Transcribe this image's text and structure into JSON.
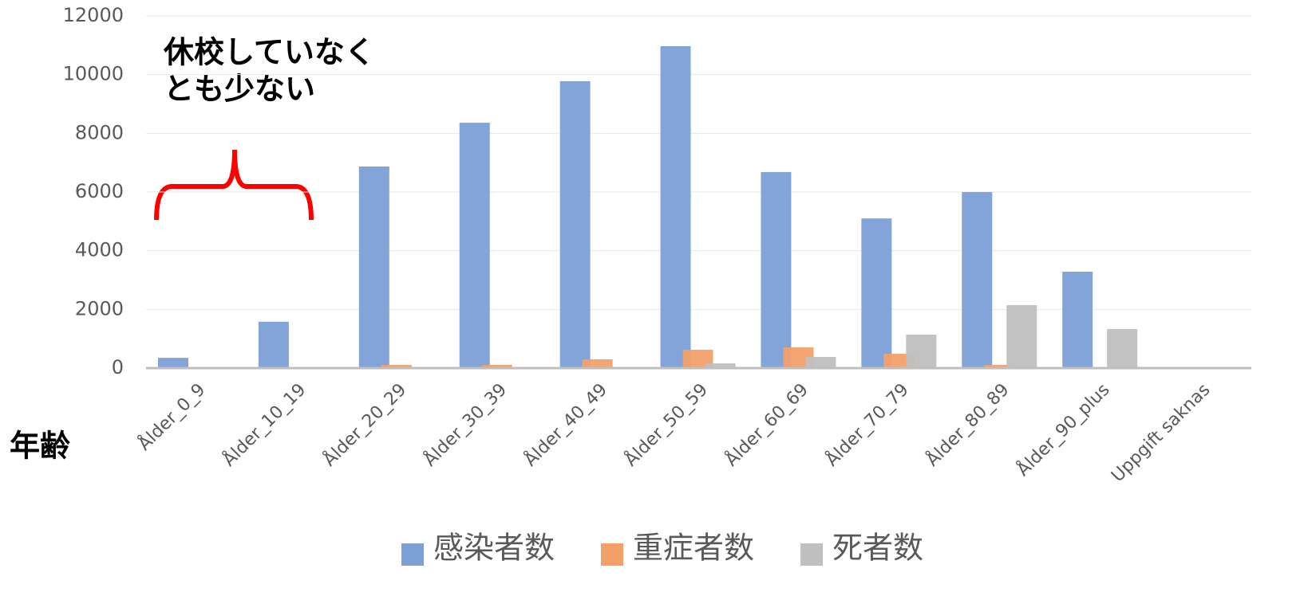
{
  "chart_data": {
    "type": "bar",
    "annotations": [
      "休校していなく",
      "とも少ない"
    ],
    "x_label": "年齢",
    "categories": [
      "Ålder_0_9",
      "Ålder_10_19",
      "Ålder_20_29",
      "Ålder_30_39",
      "Ålder_40_49",
      "Ålder_50_59",
      "Ålder_60_69",
      "Ålder_70_79",
      "Ålder_80_89",
      "Ålder_90_plus",
      "Uppgift saknas"
    ],
    "series": [
      {
        "name": "感染者数",
        "color": "#7b9fd6",
        "values": [
          350,
          1580,
          6870,
          8360,
          9775,
          10970,
          6680,
          5100,
          6000,
          3285,
          0
        ]
      },
      {
        "name": "重症者数",
        "color": "#f4a06a",
        "values": [
          0,
          0,
          110,
          110,
          300,
          625,
          705,
          490,
          110,
          0,
          0
        ]
      },
      {
        "name": "死者数",
        "color": "#bfbfbf",
        "values": [
          0,
          0,
          0,
          0,
          0,
          160,
          380,
          1140,
          2145,
          1330,
          0
        ]
      }
    ],
    "ylim": [
      0,
      12000
    ],
    "yticks": [
      0,
      2000,
      4000,
      6000,
      8000,
      10000,
      12000
    ],
    "grid": true,
    "legend": "bottom"
  }
}
